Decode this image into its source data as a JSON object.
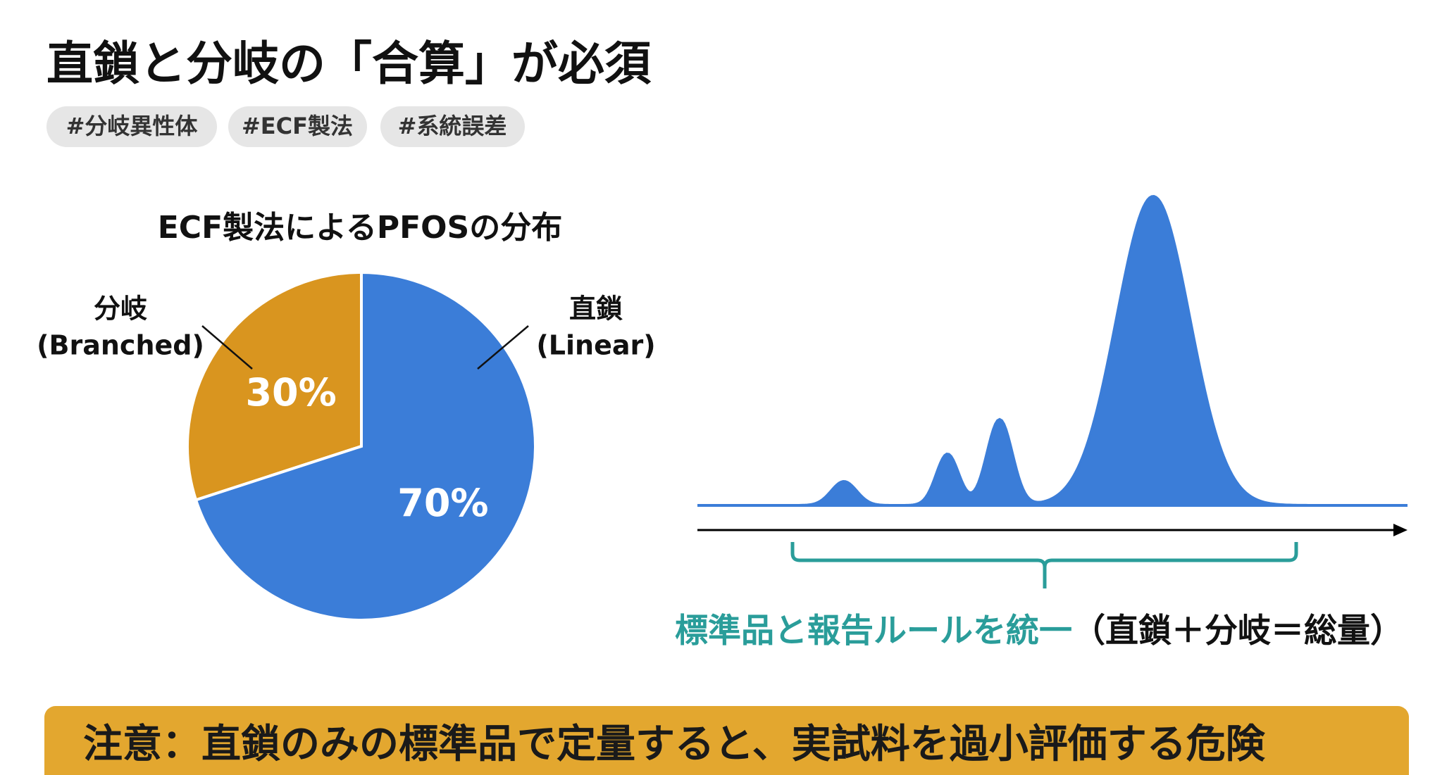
{
  "header": {
    "title": "直鎖と分岐の「合算」が必須",
    "tags": [
      "#分岐異性体",
      "#ECF製法",
      "#系統誤差"
    ]
  },
  "chart_data": {
    "type": "pie",
    "title": "ECF製法によるPFOSの分布",
    "categories": [
      "分岐",
      "直鎖"
    ],
    "category_subtitles": [
      "(Branched)",
      "(Linear)"
    ],
    "values": [
      30,
      70
    ],
    "value_labels": [
      "30%",
      "70%"
    ],
    "colors": [
      "#D9951F",
      "#3B7DD8"
    ]
  },
  "chromatogram": {
    "caption": "標準品と報告ルールを統一",
    "note": "（直鎖＋分岐＝総量）"
  },
  "warning": "注意：直鎖のみの標準品で定量すると、実試料を過小評価する危険"
}
